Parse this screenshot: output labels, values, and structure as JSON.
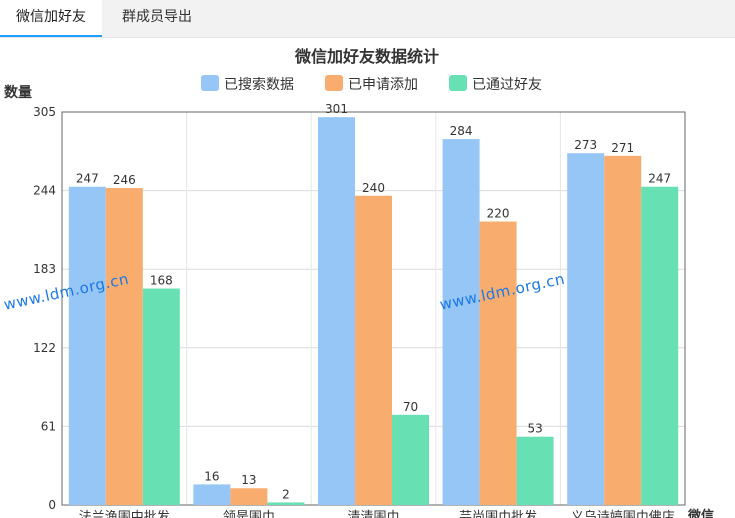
{
  "tabs": [
    {
      "label": "微信加好友",
      "active": true
    },
    {
      "label": "群成员导出",
      "active": false
    }
  ],
  "watermark": "www.ldm.org.cn",
  "colors": {
    "searched": "#95c6f5",
    "applied": "#f8ad6f",
    "passed": "#67e0b4",
    "tab_accent": "#1e9fff"
  },
  "chart_data": {
    "type": "bar",
    "title": "微信加好友数据统计",
    "ylabel": "数量",
    "xlabel": "微信",
    "ylim": [
      0,
      305
    ],
    "yticks": [
      0,
      61,
      122,
      183,
      244,
      305
    ],
    "grid": true,
    "legend_position": "top-center",
    "categories": [
      "法兰渔围中批发",
      "领是围巾",
      "清清围巾",
      "芸尚围巾批发",
      "义乌诗婷围巾佛店"
    ],
    "series": [
      {
        "name": "已搜索数据",
        "values": [
          247,
          16,
          301,
          284,
          273
        ]
      },
      {
        "name": "已申请添加",
        "values": [
          246,
          13,
          240,
          220,
          271
        ]
      },
      {
        "name": "已通过好友",
        "values": [
          168,
          2,
          70,
          53,
          247
        ]
      }
    ]
  }
}
